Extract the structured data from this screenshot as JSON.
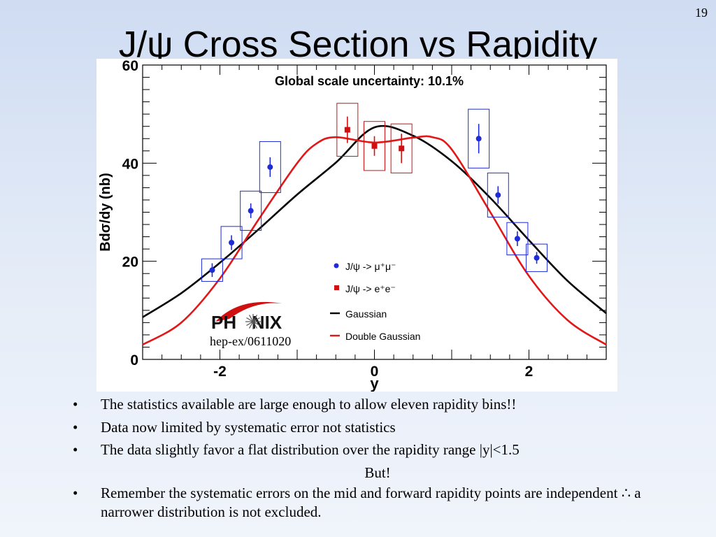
{
  "slide": {
    "number": "19",
    "title": "J/ψ Cross Section vs Rapidity"
  },
  "chart_data": {
    "type": "scatter",
    "title": "Global scale uncertainty: 10.1%",
    "xlabel": "y",
    "ylabel": "Bdσ/dy (nb)",
    "xlim": [
      -3,
      3
    ],
    "ylim": [
      0,
      60
    ],
    "x_ticks": [
      -2,
      0,
      2
    ],
    "x_tick_labels": [
      "-2",
      "0",
      "2"
    ],
    "y_ticks": [
      0,
      20,
      40,
      60
    ],
    "y_tick_labels": [
      "0",
      "20",
      "40",
      "60"
    ],
    "grid": false,
    "legend_position": "bottom-right",
    "series": [
      {
        "name": "J/ψ -> μ⁺μ⁻",
        "color": "#1f2bd6",
        "marker": "circle",
        "x": [
          -2.1,
          -1.85,
          -1.6,
          -1.35,
          1.35,
          1.6,
          1.85,
          2.1
        ],
        "y": [
          18.2,
          23.8,
          30.3,
          39.2,
          45.0,
          33.5,
          24.6,
          20.7
        ],
        "stat_err": [
          1.4,
          1.5,
          1.5,
          2.0,
          3.0,
          1.8,
          1.5,
          1.2
        ],
        "sys_err": [
          2.3,
          3.3,
          4.0,
          5.2,
          6.0,
          4.5,
          3.3,
          2.8
        ]
      },
      {
        "name": "J/ψ -> e⁺e⁻",
        "color": "#d01010",
        "marker": "square",
        "x": [
          -0.35,
          0.0,
          0.35
        ],
        "y": [
          46.8,
          43.5,
          43.0
        ],
        "stat_err": [
          2.7,
          2.0,
          3.0
        ],
        "sys_err": [
          5.4,
          5.0,
          5.0
        ]
      },
      {
        "name": "Gaussian",
        "color": "#000000",
        "line": true,
        "x": [
          -3,
          -2.5,
          -2,
          -1.5,
          -1,
          -0.5,
          0,
          0.5,
          1,
          1.5,
          2,
          2.5,
          3
        ],
        "y": [
          8.6,
          13.5,
          19.7,
          26.5,
          33.6,
          40.1,
          47.3,
          45.6,
          40.4,
          32.9,
          24.3,
          16.0,
          9.4
        ]
      },
      {
        "name": "Double Gaussian",
        "color": "#e01818",
        "line": true,
        "x": [
          -3,
          -2.5,
          -2,
          -1.5,
          -1,
          -0.75,
          -0.5,
          0,
          0.5,
          0.75,
          1,
          1.5,
          2,
          2.5,
          3
        ],
        "y": [
          3.0,
          7.5,
          16.5,
          28.5,
          40.0,
          44.0,
          45.3,
          44.2,
          45.2,
          45.3,
          42.8,
          30.0,
          17.0,
          8.0,
          3.0
        ]
      }
    ],
    "annotations": {
      "logo": "PHENIX",
      "reference": "hep-ex/0611020"
    }
  },
  "bullets": [
    {
      "type": "bullet",
      "text": "The statistics available are large enough to allow eleven rapidity bins!!"
    },
    {
      "type": "bullet",
      "text": "Data now limited by systematic error not statistics"
    },
    {
      "type": "bullet",
      "text": "The data slightly favor a flat distribution over the rapidity range |y|<1.5"
    },
    {
      "type": "center",
      "text": "But!"
    },
    {
      "type": "bullet",
      "text": "Remember the systematic errors on the mid and forward rapidity points are independent ∴  a narrower distribution is not excluded."
    }
  ],
  "bullet_symbol": "•"
}
